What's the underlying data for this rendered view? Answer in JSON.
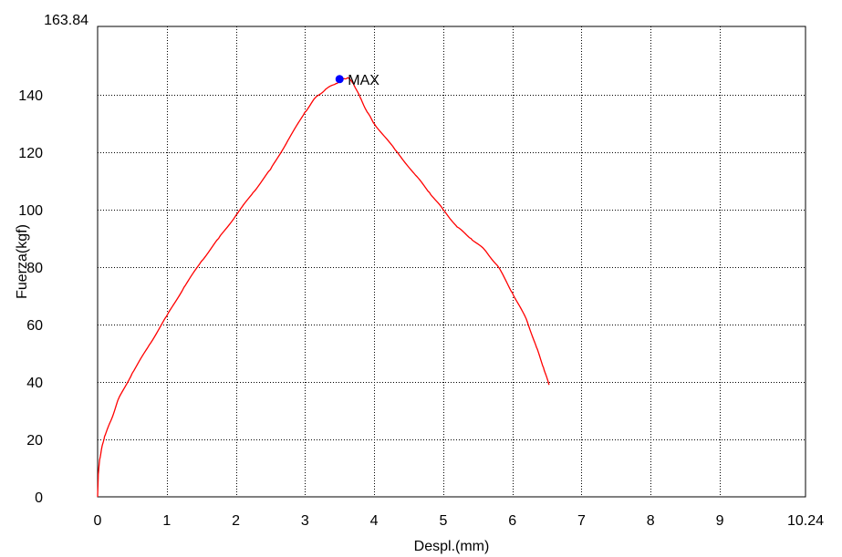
{
  "chart_data": {
    "type": "line",
    "title": "",
    "xlabel": "Despl.(mm)",
    "ylabel": "Fuerza(kgf)",
    "xlim": [
      0,
      10.24
    ],
    "ylim": [
      0,
      163.84
    ],
    "x_ticks": [
      0,
      1,
      2,
      3,
      4,
      5,
      6,
      7,
      8,
      9
    ],
    "x_tick_labels": [
      "0",
      "1",
      "2",
      "3",
      "4",
      "5",
      "6",
      "7",
      "8",
      "9"
    ],
    "x_max_label": "10.24",
    "y_ticks": [
      0,
      20,
      40,
      60,
      80,
      100,
      120,
      140
    ],
    "y_tick_labels": [
      "0",
      "20",
      "40",
      "60",
      "80",
      "100",
      "120",
      "140"
    ],
    "y_max_label": "163.84",
    "grid": true,
    "series": [
      {
        "color": "#ff0000",
        "points": [
          [
            0.0,
            0
          ],
          [
            0.01,
            8
          ],
          [
            0.03,
            13
          ],
          [
            0.06,
            17
          ],
          [
            0.1,
            21
          ],
          [
            0.2,
            27
          ],
          [
            0.3,
            34
          ],
          [
            0.5,
            43
          ],
          [
            0.75,
            53
          ],
          [
            1.0,
            63
          ],
          [
            1.25,
            73
          ],
          [
            1.5,
            82
          ],
          [
            1.75,
            90
          ],
          [
            2.0,
            98
          ],
          [
            2.25,
            106
          ],
          [
            2.5,
            114
          ],
          [
            2.75,
            124
          ],
          [
            3.0,
            134
          ],
          [
            3.15,
            139
          ],
          [
            3.3,
            142
          ],
          [
            3.45,
            144
          ],
          [
            3.55,
            145.5
          ],
          [
            3.62,
            146
          ],
          [
            3.7,
            144
          ],
          [
            3.8,
            139
          ],
          [
            3.9,
            134
          ],
          [
            4.0,
            130
          ],
          [
            4.3,
            121
          ],
          [
            4.6,
            112
          ],
          [
            4.8,
            106
          ],
          [
            5.0,
            100
          ],
          [
            5.2,
            94
          ],
          [
            5.4,
            90
          ],
          [
            5.6,
            86
          ],
          [
            5.8,
            80
          ],
          [
            6.0,
            71
          ],
          [
            6.2,
            62
          ],
          [
            6.35,
            52
          ],
          [
            6.45,
            45
          ],
          [
            6.53,
            39
          ]
        ]
      }
    ],
    "annotations": [
      {
        "label": "MAX",
        "x": 3.5,
        "y": 145.5,
        "color": "#0000ff"
      }
    ]
  }
}
